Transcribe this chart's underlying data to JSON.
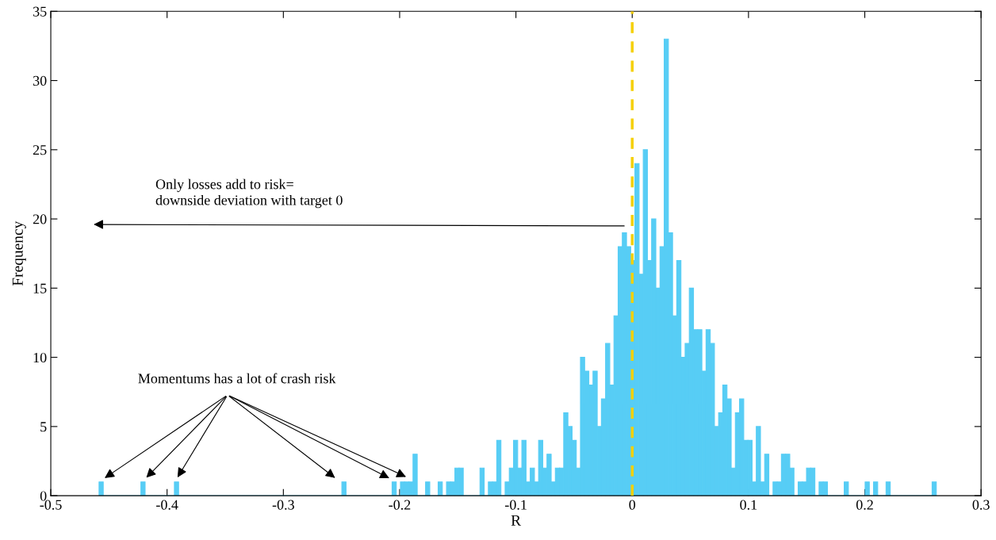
{
  "chart_data": {
    "type": "histogram",
    "xlabel": "R",
    "ylabel": "Frequency",
    "bins": [
      -0.4585,
      -0.4549,
      -0.4513,
      -0.4477,
      -0.4441,
      -0.4405,
      -0.4369,
      -0.4333,
      -0.4297,
      -0.4261,
      -0.4225,
      -0.4189,
      -0.4153,
      -0.4117,
      -0.4081,
      -0.4045,
      -0.4009,
      -0.3973,
      -0.3937,
      -0.3901,
      -0.3865,
      -0.3829,
      -0.3793,
      -0.3757,
      -0.3721,
      -0.3685,
      -0.3649,
      -0.3613,
      -0.3577,
      -0.3541,
      -0.3505,
      -0.3469,
      -0.3433,
      -0.3397,
      -0.3361,
      -0.3325,
      -0.3289,
      -0.3253,
      -0.3217,
      -0.3181,
      -0.3145,
      -0.3109,
      -0.3073,
      -0.3037,
      -0.3001,
      -0.2965,
      -0.2929,
      -0.2893,
      -0.2857,
      -0.2821,
      -0.2785,
      -0.2749,
      -0.2713,
      -0.2677,
      -0.2641,
      -0.2605,
      -0.2569,
      -0.2533,
      -0.2497,
      -0.2461,
      -0.2425,
      -0.2389,
      -0.2353,
      -0.2317,
      -0.2281,
      -0.2245,
      -0.2209,
      -0.2173,
      -0.2137,
      -0.2101,
      -0.2065,
      -0.2029,
      -0.1993,
      -0.1957,
      -0.1921,
      -0.1885,
      -0.1849,
      -0.1813,
      -0.1777,
      -0.1741,
      -0.1705,
      -0.1669,
      -0.1633,
      -0.1597,
      -0.1561,
      -0.1525,
      -0.1489,
      -0.1453,
      -0.1417,
      -0.1381,
      -0.1345,
      -0.1309,
      -0.1273,
      -0.1237,
      -0.1201,
      -0.1165,
      -0.1129,
      -0.1093,
      -0.1057,
      -0.1021,
      -0.0985,
      -0.0949,
      -0.0913,
      -0.0877,
      -0.0841,
      -0.0805,
      -0.0769,
      -0.0733,
      -0.0697,
      -0.0661,
      -0.0625,
      -0.0589,
      -0.0553,
      -0.0517,
      -0.0481,
      -0.0445,
      -0.0409,
      -0.0373,
      -0.0337,
      -0.0301,
      -0.0265,
      -0.0229,
      -0.0193,
      -0.0157,
      -0.0121,
      -0.0085,
      -0.0049,
      -0.0013,
      0.0023,
      0.0059,
      0.0095,
      0.0131,
      0.0167,
      0.0203,
      0.0239,
      0.0275,
      0.0311,
      0.0347,
      0.0383,
      0.0419,
      0.0455,
      0.0491,
      0.0527,
      0.0563,
      0.0599,
      0.0635,
      0.0671,
      0.0707,
      0.0743,
      0.0779,
      0.0815,
      0.0851,
      0.0887,
      0.0923,
      0.0959,
      0.0995,
      0.1031,
      0.1067,
      0.1103,
      0.1139,
      0.1175,
      0.1211,
      0.1247,
      0.1283,
      0.1319,
      0.1355,
      0.1391,
      0.1427,
      0.1463,
      0.1499,
      0.1535,
      0.1571,
      0.1607,
      0.1643,
      0.1679,
      0.1715,
      0.1751,
      0.1787,
      0.1823,
      0.1859,
      0.1895,
      0.1931,
      0.1967,
      0.2003,
      0.2039,
      0.2075,
      0.2111,
      0.2147,
      0.2183,
      0.2219,
      0.2255,
      0.2291,
      0.2327,
      0.2363,
      0.2399,
      0.2435,
      0.2471,
      0.2507,
      0.2543,
      0.2579,
      0.2615
    ],
    "values": [
      1,
      0,
      0,
      0,
      0,
      0,
      0,
      0,
      0,
      0,
      1,
      0,
      0,
      0,
      0,
      0,
      0,
      0,
      1,
      0,
      0,
      0,
      0,
      0,
      0,
      0,
      0,
      0,
      0,
      0,
      0,
      0,
      0,
      0,
      0,
      0,
      0,
      0,
      0,
      0,
      0,
      0,
      0,
      0,
      0,
      0,
      0,
      0,
      0,
      0,
      0,
      0,
      0,
      0,
      0,
      0,
      0,
      0,
      1,
      0,
      0,
      0,
      0,
      0,
      0,
      0,
      0,
      0,
      0,
      0,
      1,
      0,
      1,
      1,
      1,
      3,
      0,
      0,
      1,
      0,
      0,
      1,
      0,
      1,
      1,
      2,
      2,
      0,
      0,
      0,
      0,
      2,
      0,
      1,
      1,
      4,
      0,
      1,
      2,
      4,
      2,
      4,
      1,
      2,
      1,
      4,
      2,
      3,
      1,
      2,
      2,
      6,
      5,
      4,
      2,
      10,
      9,
      8,
      9,
      5,
      7,
      11,
      8,
      13,
      18,
      19,
      18,
      17,
      24,
      16,
      25,
      17,
      20,
      15,
      18,
      33,
      19,
      13,
      17,
      10,
      11,
      15,
      12,
      12,
      9,
      12,
      11,
      5,
      6,
      8,
      7,
      2,
      6,
      7,
      4,
      4,
      1,
      5,
      1,
      3,
      0,
      1,
      1,
      3,
      3,
      2,
      0,
      1,
      1,
      2,
      2,
      0,
      1,
      1,
      0,
      0,
      0,
      0,
      1,
      0,
      0,
      0,
      0,
      1,
      0,
      1,
      0,
      0,
      1,
      0,
      0,
      0,
      0,
      0,
      0,
      0,
      0,
      0,
      0,
      1
    ],
    "color": "#57cdf5",
    "xlim": [
      -0.5,
      0.3
    ],
    "xticks": [
      -0.5,
      -0.4,
      -0.3,
      -0.2,
      -0.1,
      0,
      0.1,
      0.2,
      0.3
    ],
    "ylim": [
      0,
      35
    ],
    "yticks": [
      0,
      5,
      10,
      15,
      20,
      25,
      30,
      35
    ],
    "ref_lines": [
      {
        "axis": "x",
        "value": 0,
        "color": "#f5d000",
        "line_style": "dashed"
      }
    ],
    "annotations": [
      "Only losses add to risk=\ndownside deviation with target 0",
      "Momentums has a lot of crash risk"
    ],
    "grid": false,
    "legend": false
  }
}
